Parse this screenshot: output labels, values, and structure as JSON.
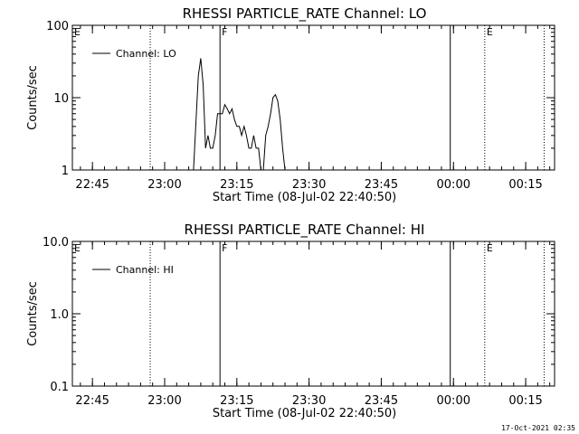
{
  "timestamp": "17-Oct-2021 02:35",
  "chart_data": [
    {
      "type": "line",
      "title": "RHESSI PARTICLE_RATE Channel: LO",
      "xlabel": "Start Time (08-Jul-02 22:40:50)",
      "ylabel": "Counts/sec",
      "y_scale": "log",
      "ylim": [
        1,
        100
      ],
      "y_ticks": [
        {
          "value": 1,
          "label": "1"
        },
        {
          "value": 10,
          "label": "10"
        },
        {
          "value": 100,
          "label": "100"
        }
      ],
      "xlim": [
        "22:40:50",
        "00:21:00"
      ],
      "x_ticks": [
        "22:45",
        "23:00",
        "23:15",
        "23:30",
        "23:45",
        "00:00",
        "00:15"
      ],
      "legend": {
        "position": "top-left",
        "entries": [
          "Channel: LO"
        ]
      },
      "series": [
        {
          "name": "Channel: LO",
          "x": [
            "23:06:00",
            "23:07:00",
            "23:07:30",
            "23:08:00",
            "23:08:30",
            "23:09:00",
            "23:09:30",
            "23:10:00",
            "23:10:30",
            "23:11:00",
            "23:11:30",
            "23:12:00",
            "23:12:30",
            "23:13:00",
            "23:13:30",
            "23:14:00",
            "23:14:30",
            "23:15:00",
            "23:15:30",
            "23:16:00",
            "23:16:30",
            "23:17:00",
            "23:17:30",
            "23:18:00",
            "23:18:30",
            "23:19:00",
            "23:19:30",
            "23:20:00",
            "23:20:30",
            "23:21:00",
            "23:21:30",
            "23:22:00",
            "23:22:30",
            "23:23:00",
            "23:23:30",
            "23:24:00",
            "23:24:30",
            "23:25:00",
            "23:25:30",
            "23:26:00",
            "23:26:30",
            "23:27:00"
          ],
          "values": [
            1.0,
            20,
            35,
            15,
            2,
            3,
            2,
            2,
            3,
            6,
            6,
            6,
            8,
            7,
            6,
            7,
            5,
            4,
            4,
            3,
            4,
            3,
            2,
            2,
            3,
            2,
            2,
            1,
            1,
            3,
            4,
            6,
            10,
            11,
            9,
            5,
            2,
            1,
            1,
            1,
            1,
            1
          ]
        }
      ],
      "markers": [
        {
          "label": "E",
          "time": "22:40:50",
          "style": "none"
        },
        {
          "label": "",
          "time": "22:57:00",
          "style": "dotted"
        },
        {
          "label": "F",
          "time": "23:11:30",
          "style": "solid"
        },
        {
          "label": "",
          "time": "23:59:20",
          "style": "solid"
        },
        {
          "label": "E",
          "time": "00:06:30",
          "style": "dotted"
        },
        {
          "label": "",
          "time": "00:18:50",
          "style": "dotted"
        }
      ]
    },
    {
      "type": "line",
      "title": "RHESSI PARTICLE_RATE Channel: HI",
      "xlabel": "Start Time (08-Jul-02 22:40:50)",
      "ylabel": "Counts/sec",
      "y_scale": "log",
      "ylim": [
        0.1,
        10
      ],
      "y_ticks": [
        {
          "value": 0.1,
          "label": "0.1"
        },
        {
          "value": 1,
          "label": "1.0"
        },
        {
          "value": 10,
          "label": "10.0"
        }
      ],
      "xlim": [
        "22:40:50",
        "00:21:00"
      ],
      "x_ticks": [
        "22:45",
        "23:00",
        "23:15",
        "23:30",
        "23:45",
        "00:00",
        "00:15"
      ],
      "legend": {
        "position": "top-left",
        "entries": [
          "Channel: HI"
        ]
      },
      "series": [
        {
          "name": "Channel: HI",
          "x": [],
          "values": []
        }
      ],
      "markers": [
        {
          "label": "E",
          "time": "22:40:50",
          "style": "none"
        },
        {
          "label": "",
          "time": "22:57:00",
          "style": "dotted"
        },
        {
          "label": "F",
          "time": "23:11:30",
          "style": "solid"
        },
        {
          "label": "",
          "time": "23:59:20",
          "style": "solid"
        },
        {
          "label": "E",
          "time": "00:06:30",
          "style": "dotted"
        },
        {
          "label": "",
          "time": "00:18:50",
          "style": "dotted"
        }
      ]
    }
  ]
}
